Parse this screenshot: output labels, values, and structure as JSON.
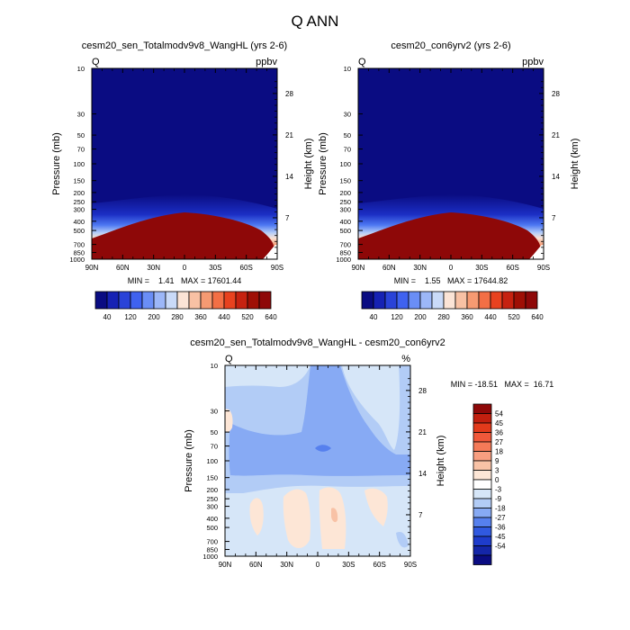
{
  "figure": {
    "title": "Q ANN"
  },
  "chart_data": [
    {
      "type": "heatmap",
      "title": "cesm20_sen_Totalmodv9v8_WangHL (yrs 2-6)",
      "corner_left": "Q",
      "corner_right": "ppbv",
      "ylabel": "Pressure (mb)",
      "ylabel_right": "Height (km)",
      "x_ticks": [
        "90N",
        "60N",
        "30N",
        "0",
        "30S",
        "60S",
        "90S"
      ],
      "y_ticks": [
        "10",
        "30",
        "50",
        "70",
        "100",
        "150",
        "200",
        "250",
        "300",
        "400",
        "500",
        "700",
        "850",
        "1000"
      ],
      "height_ticks": [
        "28",
        "21",
        "14",
        "7"
      ],
      "min_max": "MIN =    1.41   MAX = 17601.44",
      "colorbar_labels": [
        "40",
        "120",
        "200",
        "280",
        "360",
        "440",
        "520",
        "640"
      ],
      "colors": [
        "#0a0c82",
        "#1622b4",
        "#2a43d8",
        "#3f62f0",
        "#6a8ef6",
        "#9cb7f8",
        "#c9daf8",
        "#fbe4d6",
        "#f8c1a4",
        "#f69a72",
        "#f36f45",
        "#e8421f",
        "#c62210",
        "#9f0f05",
        "#8e0808"
      ]
    },
    {
      "type": "heatmap",
      "title": "cesm20_con6yrv2 (yrs 2-6)",
      "corner_left": "Q",
      "corner_right": "ppbv",
      "ylabel": "Pressure (mb)",
      "ylabel_right": "Height (km)",
      "x_ticks": [
        "90N",
        "60N",
        "30N",
        "0",
        "30S",
        "60S",
        "90S"
      ],
      "y_ticks": [
        "10",
        "30",
        "50",
        "70",
        "100",
        "150",
        "200",
        "250",
        "300",
        "400",
        "500",
        "700",
        "850",
        "1000"
      ],
      "height_ticks": [
        "28",
        "21",
        "14",
        "7"
      ],
      "min_max": "MIN =    1.55   MAX = 17644.82",
      "colorbar_labels": [
        "40",
        "120",
        "200",
        "280",
        "360",
        "440",
        "520",
        "640"
      ],
      "colors": [
        "#0a0c82",
        "#1622b4",
        "#2a43d8",
        "#3f62f0",
        "#6a8ef6",
        "#9cb7f8",
        "#c9daf8",
        "#fbe4d6",
        "#f8c1a4",
        "#f69a72",
        "#f36f45",
        "#e8421f",
        "#c62210",
        "#9f0f05",
        "#8e0808"
      ]
    },
    {
      "type": "heatmap",
      "title": "cesm20_sen_Totalmodv9v8_WangHL - cesm20_con6yrv2",
      "corner_left": "Q",
      "corner_right": "%",
      "ylabel": "Pressure (mb)",
      "ylabel_right": "Height (km)",
      "x_ticks": [
        "90N",
        "60N",
        "30N",
        "0",
        "30S",
        "60S",
        "90S"
      ],
      "y_ticks": [
        "10",
        "30",
        "50",
        "70",
        "100",
        "150",
        "200",
        "250",
        "300",
        "400",
        "500",
        "700",
        "850",
        "1000"
      ],
      "height_ticks": [
        "28",
        "21",
        "14",
        "7"
      ],
      "min_max": "MIN = -18.51   MAX =  16.71",
      "colorbar_labels": [
        "54",
        "45",
        "36",
        "27",
        "18",
        "9",
        "3",
        "0",
        "-3",
        "-9",
        "-18",
        "-27",
        "-36",
        "-45",
        "-54"
      ],
      "colors": [
        "#8e0808",
        "#c11f0f",
        "#e23a1b",
        "#f0583a",
        "#f47a58",
        "#f89e80",
        "#f8c2a6",
        "#fde6d6",
        "#ffffff",
        "#d6e6f8",
        "#b2ccf6",
        "#87aaf4",
        "#5680ee",
        "#3059e0",
        "#1e3ccc",
        "#1426a8",
        "#0a0c82"
      ]
    }
  ]
}
